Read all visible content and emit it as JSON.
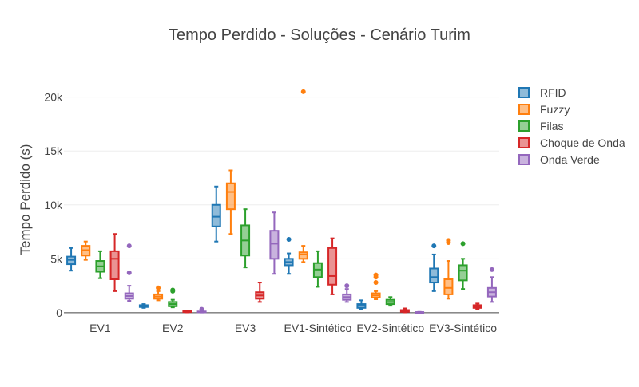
{
  "chart_data": {
    "type": "box",
    "title": "Tempo Perdido - Soluções - Cenário Turim",
    "xlabel": "",
    "ylabel": "Tempo Perdido (s)",
    "categories": [
      "EV1",
      "EV2",
      "EV3",
      "EV1-Sintético",
      "EV2-Sintético",
      "EV3-Sintético"
    ],
    "yticks": [
      {
        "value": 0,
        "label": "0"
      },
      {
        "value": 5000,
        "label": "5k"
      },
      {
        "value": 10000,
        "label": "10k"
      },
      {
        "value": 15000,
        "label": "15k"
      },
      {
        "value": 20000,
        "label": "20k"
      }
    ],
    "ylim": [
      -600,
      21600
    ],
    "grid": true,
    "legend_position": "top-right",
    "series": [
      {
        "name": "RFID",
        "color": "#1f77b4",
        "boxes": [
          {
            "min": 3900,
            "q1": 4500,
            "median": 4900,
            "q3": 5200,
            "max": 6000,
            "outliers": []
          },
          {
            "min": 450,
            "q1": 530,
            "median": 620,
            "q3": 700,
            "max": 800,
            "outliers": []
          },
          {
            "min": 6600,
            "q1": 8000,
            "median": 8900,
            "q3": 10000,
            "max": 11700,
            "outliers": []
          },
          {
            "min": 3600,
            "q1": 4400,
            "median": 4700,
            "q3": 5000,
            "max": 5500,
            "outliers": [
              6800
            ]
          },
          {
            "min": 350,
            "q1": 450,
            "median": 650,
            "q3": 800,
            "max": 1150,
            "outliers": []
          },
          {
            "min": 2000,
            "q1": 2800,
            "median": 3300,
            "q3": 4100,
            "max": 5400,
            "outliers": [
              6200
            ]
          }
        ]
      },
      {
        "name": "Fuzzy",
        "color": "#ff7f0e",
        "boxes": [
          {
            "min": 4900,
            "q1": 5300,
            "median": 5800,
            "q3": 6200,
            "max": 6600,
            "outliers": []
          },
          {
            "min": 1150,
            "q1": 1300,
            "median": 1500,
            "q3": 1700,
            "max": 2000,
            "outliers": [
              2300
            ]
          },
          {
            "min": 7300,
            "q1": 9600,
            "median": 11200,
            "q3": 12000,
            "max": 13200,
            "outliers": []
          },
          {
            "min": 4700,
            "q1": 5000,
            "median": 5400,
            "q3": 5600,
            "max": 6200,
            "outliers": [
              20500
            ]
          },
          {
            "min": 1250,
            "q1": 1400,
            "median": 1600,
            "q3": 1800,
            "max": 2000,
            "outliers": [
              2800,
              3300,
              3500
            ]
          },
          {
            "min": 1300,
            "q1": 1700,
            "median": 2300,
            "q3": 3100,
            "max": 4800,
            "outliers": [
              6500,
              6700
            ]
          }
        ]
      },
      {
        "name": "Filas",
        "color": "#2ca02c",
        "boxes": [
          {
            "min": 3200,
            "q1": 3800,
            "median": 4300,
            "q3": 4800,
            "max": 5700,
            "outliers": []
          },
          {
            "min": 500,
            "q1": 600,
            "median": 800,
            "q3": 1000,
            "max": 1200,
            "outliers": [
              2000,
              2100
            ]
          },
          {
            "min": 4200,
            "q1": 5300,
            "median": 6700,
            "q3": 8100,
            "max": 9600,
            "outliers": []
          },
          {
            "min": 2400,
            "q1": 3300,
            "median": 4000,
            "q3": 4600,
            "max": 5700,
            "outliers": []
          },
          {
            "min": 650,
            "q1": 800,
            "median": 1000,
            "q3": 1200,
            "max": 1450,
            "outliers": []
          },
          {
            "min": 2200,
            "q1": 3000,
            "median": 3900,
            "q3": 4400,
            "max": 5000,
            "outliers": [
              6400
            ]
          }
        ]
      },
      {
        "name": "Choque de Onda",
        "color": "#d62728",
        "boxes": [
          {
            "min": 2000,
            "q1": 3100,
            "median": 5000,
            "q3": 5700,
            "max": 7300,
            "outliers": []
          },
          {
            "min": 30,
            "q1": 60,
            "median": 100,
            "q3": 140,
            "max": 200,
            "outliers": []
          },
          {
            "min": 1000,
            "q1": 1300,
            "median": 1600,
            "q3": 1900,
            "max": 2800,
            "outliers": []
          },
          {
            "min": 1700,
            "q1": 2600,
            "median": 3400,
            "q3": 6000,
            "max": 6900,
            "outliers": []
          },
          {
            "min": 30,
            "q1": 80,
            "median": 150,
            "q3": 250,
            "max": 400,
            "outliers": []
          },
          {
            "min": 350,
            "q1": 450,
            "median": 550,
            "q3": 700,
            "max": 850,
            "outliers": []
          }
        ]
      },
      {
        "name": "Onda Verde",
        "color": "#9467bd",
        "boxes": [
          {
            "min": 1100,
            "q1": 1300,
            "median": 1550,
            "q3": 1800,
            "max": 2500,
            "outliers": [
              3700,
              6200
            ]
          },
          {
            "min": 20,
            "q1": 40,
            "median": 80,
            "q3": 120,
            "max": 180,
            "outliers": [
              320
            ]
          },
          {
            "min": 3600,
            "q1": 5000,
            "median": 6400,
            "q3": 7600,
            "max": 9300,
            "outliers": []
          },
          {
            "min": 1000,
            "q1": 1200,
            "median": 1450,
            "q3": 1700,
            "max": 2200,
            "outliers": [
              2500
            ]
          },
          {
            "min": 10,
            "q1": 20,
            "median": 40,
            "q3": 60,
            "max": 80,
            "outliers": []
          },
          {
            "min": 1000,
            "q1": 1500,
            "median": 1900,
            "q3": 2300,
            "max": 3300,
            "outliers": [
              4000
            ]
          }
        ]
      }
    ]
  }
}
